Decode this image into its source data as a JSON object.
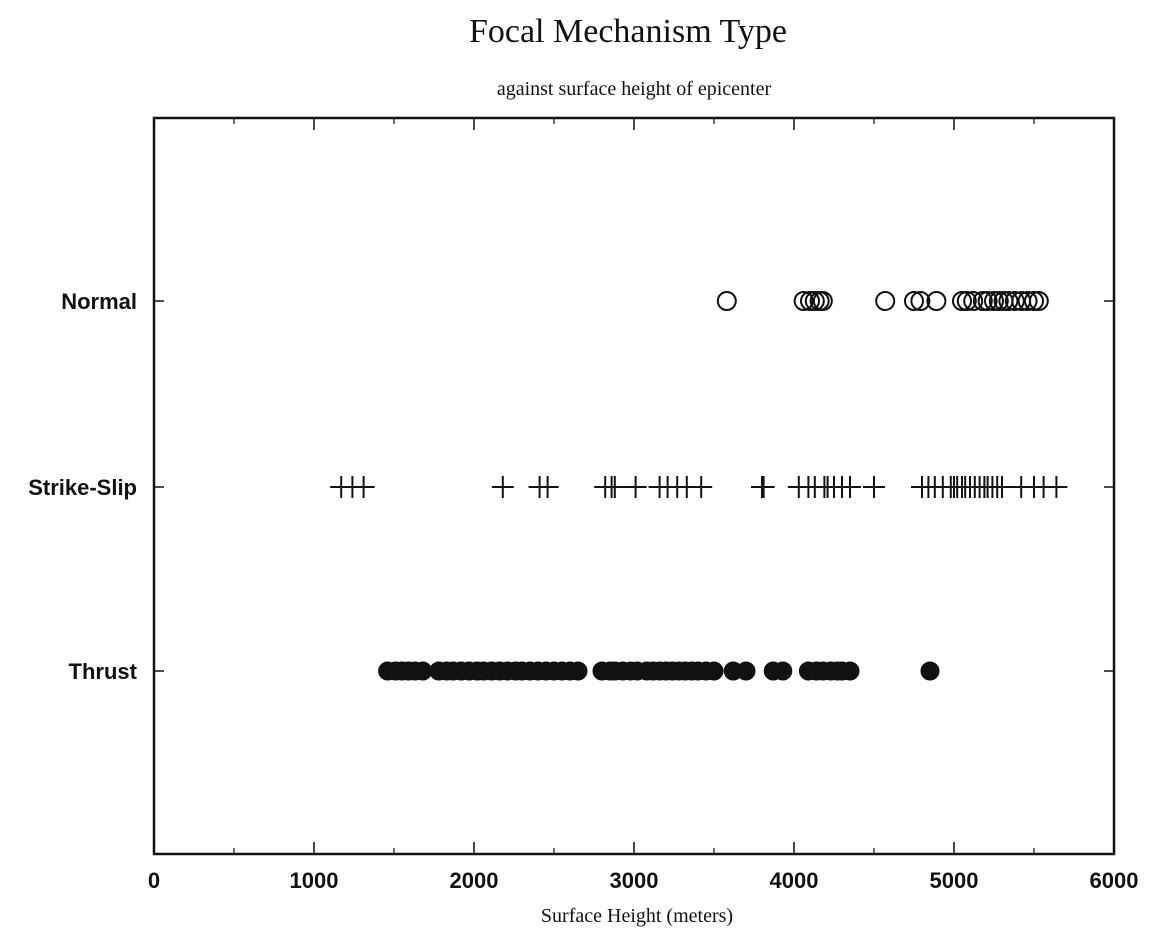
{
  "chart_data": {
    "type": "scatter",
    "title": "Focal Mechanism Type",
    "subtitle": "against surface height of epicenter",
    "xlabel": "Surface Height  (meters)",
    "ylabel": "",
    "xlim": [
      0,
      6000
    ],
    "xticks": [
      0,
      1000,
      2000,
      3000,
      4000,
      5000,
      6000
    ],
    "xtick_labels": [
      "0",
      "1000",
      "2000",
      "3000",
      "4000",
      "5000",
      "6000"
    ],
    "categories": [
      "Normal",
      "Strike-Slip",
      "Thrust"
    ],
    "grid": false,
    "legend": "none",
    "series": [
      {
        "category": "Normal",
        "marker": "open-circle",
        "x": [
          3580,
          4060,
          4100,
          4130,
          4160,
          4180,
          4570,
          4750,
          4790,
          4890,
          5050,
          5080,
          5120,
          5180,
          5210,
          5250,
          5280,
          5310,
          5340,
          5380,
          5420,
          5460,
          5500,
          5530
        ]
      },
      {
        "category": "Strike-Slip",
        "marker": "plus",
        "x": [
          1170,
          1240,
          1310,
          2180,
          2410,
          2460,
          2820,
          2860,
          2880,
          3010,
          3160,
          3210,
          3270,
          3330,
          3420,
          3800,
          3810,
          4030,
          4090,
          4130,
          4190,
          4210,
          4250,
          4300,
          4350,
          4500,
          4800,
          4840,
          4880,
          4930,
          4980,
          5000,
          5020,
          5050,
          5070,
          5100,
          5130,
          5160,
          5190,
          5210,
          5240,
          5270,
          5300,
          5420,
          5500,
          5560,
          5640
        ]
      },
      {
        "category": "Thrust",
        "marker": "filled-circle",
        "x": [
          1460,
          1510,
          1550,
          1590,
          1630,
          1680,
          1780,
          1830,
          1870,
          1920,
          1970,
          2020,
          2060,
          2110,
          2160,
          2210,
          2260,
          2300,
          2350,
          2400,
          2450,
          2500,
          2550,
          2600,
          2650,
          2800,
          2850,
          2880,
          2930,
          2980,
          3020,
          3080,
          3120,
          3160,
          3200,
          3240,
          3280,
          3320,
          3360,
          3400,
          3450,
          3500,
          3620,
          3700,
          3870,
          3930,
          4090,
          4140,
          4180,
          4230,
          4270,
          4300,
          4350,
          4850
        ]
      }
    ]
  }
}
